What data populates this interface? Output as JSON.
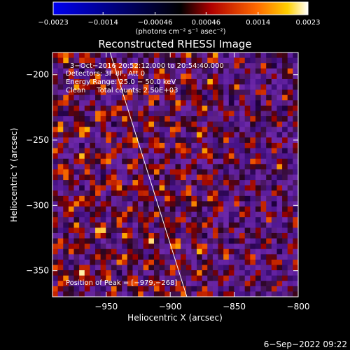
{
  "chart_data": {
    "type": "heatmap",
    "title": "Reconstructed RHESSI Image",
    "xlabel": "Heliocentric X (arcsec)",
    "ylabel": "Heliocentric Y (arcsec)",
    "xlim": [
      -992,
      -800
    ],
    "ylim": [
      -370,
      -183
    ],
    "x_ticks": [
      -950,
      -900,
      -850,
      -800
    ],
    "y_ticks": [
      -200,
      -250,
      -300,
      -350
    ],
    "x_tick_labels": [
      "−950",
      "−900",
      "−850",
      "−800"
    ],
    "y_tick_labels": [
      "−200",
      "−250",
      "−300",
      "−350"
    ],
    "colorbar": {
      "min": -0.0023,
      "max": 0.0023,
      "ticks": [
        -0.0023,
        -0.0014,
        -0.00046,
        0.00046,
        0.0014,
        0.0023
      ],
      "tick_labels": [
        "−0.0023",
        "−0.0014",
        "−0.00046",
        "0.00046",
        "0.0014",
        "0.0023"
      ],
      "unit_label": "(photons cm⁻² s⁻¹ asec⁻²)"
    },
    "annotations": {
      "time_range": "3−Oct−2016 20:52:12.000 to 20:54:40.000",
      "detectors": "Detectors: 3F 8F, Att 0",
      "energy_range": "Energy Range: 25.0 − 50.0 keV",
      "clean_counts": "Clean     Total counts: 2.50E+03",
      "peak_position": "Position of Peak = [−979,−268]"
    },
    "limb_line": {
      "from": [
        -947,
        -183
      ],
      "to": [
        -887,
        -370
      ]
    },
    "timestamp": "6−Sep−2022 09:22"
  }
}
